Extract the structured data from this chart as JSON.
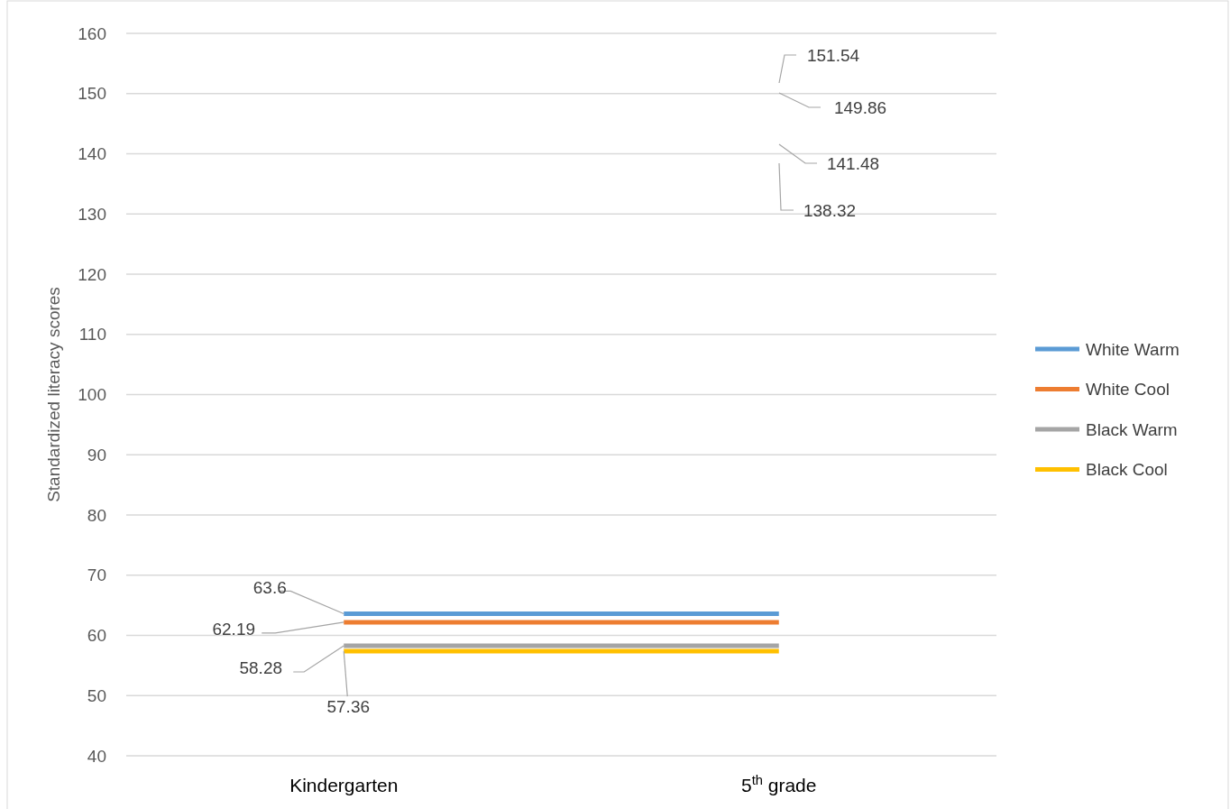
{
  "chart_data": {
    "type": "line",
    "ylabel": "Standardized literacy scores",
    "categories": [
      "Kindergarten",
      "5$^{th}$ grade"
    ],
    "series": [
      {
        "name": "White Warm",
        "color": "#5b9bd5",
        "values": [
          63.6,
          63.6
        ],
        "value_labels": [
          "63.6",
          null
        ]
      },
      {
        "name": "White Cool",
        "color": "#ed7d31",
        "values": [
          62.19,
          62.19
        ],
        "value_labels": [
          "62.19",
          null
        ]
      },
      {
        "name": "Black Warm",
        "color": "#a5a5a5",
        "values": [
          58.28,
          58.28
        ],
        "value_labels": [
          "58.28",
          null
        ]
      },
      {
        "name": "Black Cool",
        "color": "#ffc000",
        "values": [
          57.36,
          57.36
        ],
        "value_labels": [
          "57.36",
          null
        ]
      }
    ],
    "annotations": [
      "151.54",
      "149.86",
      "141.48",
      "138.32"
    ],
    "ylim": [
      40,
      160
    ],
    "yticks": [
      40,
      50,
      60,
      70,
      80,
      90,
      100,
      110,
      120,
      130,
      140,
      150,
      160
    ],
    "grid": "y",
    "legend": "right",
    "marker": "none",
    "line_style": "solid"
  }
}
